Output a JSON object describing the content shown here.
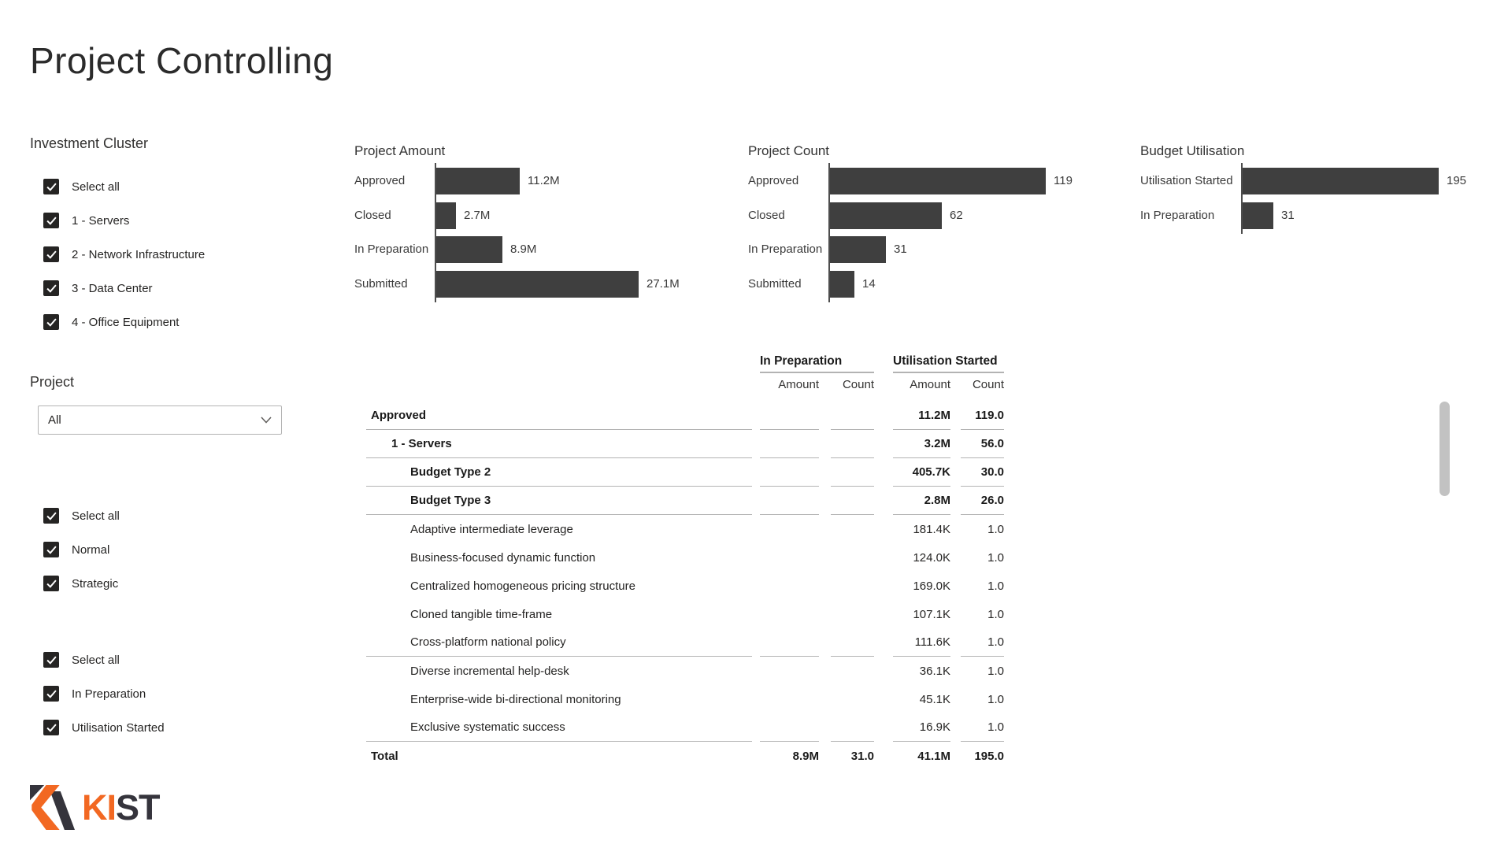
{
  "page": {
    "title": "Project Controlling"
  },
  "filters": {
    "investment_cluster": {
      "label": "Investment Cluster",
      "items": [
        "Select all",
        "1 - Servers",
        "2 - Network Infrastructure",
        "3 - Data Center",
        "4 - Office Equipment"
      ],
      "checked": [
        true,
        true,
        true,
        true,
        true
      ]
    },
    "project": {
      "label": "Project",
      "dropdown_value": "All"
    },
    "priority": {
      "items": [
        "Select all",
        "Normal",
        "Strategic"
      ],
      "checked": [
        true,
        true,
        true
      ]
    },
    "status": {
      "items": [
        "Select all",
        "In Preparation",
        "Utilisation Started"
      ],
      "checked": [
        true,
        true,
        true
      ]
    }
  },
  "chart_data": [
    {
      "type": "bar",
      "orientation": "horizontal",
      "title": "Project Amount",
      "categories": [
        "Approved",
        "Closed",
        "In Preparation",
        "Submitted"
      ],
      "values": [
        11.2,
        2.7,
        8.9,
        27.1
      ],
      "value_labels": [
        "11.2M",
        "2.7M",
        "8.9M",
        "27.1M"
      ],
      "xlim": [
        0,
        27.1
      ],
      "bar_color": "#3F3F3F",
      "grid": false,
      "legend": false
    },
    {
      "type": "bar",
      "orientation": "horizontal",
      "title": "Project Count",
      "categories": [
        "Approved",
        "Closed",
        "In Preparation",
        "Submitted"
      ],
      "values": [
        119,
        62,
        31,
        14
      ],
      "value_labels": [
        "119",
        "62",
        "31",
        "14"
      ],
      "xlim": [
        0,
        119
      ],
      "bar_color": "#3F3F3F",
      "grid": false,
      "legend": false
    },
    {
      "type": "bar",
      "orientation": "horizontal",
      "title": "Budget Utilisation",
      "categories": [
        "Utilisation Started",
        "In Preparation"
      ],
      "values": [
        195,
        31
      ],
      "value_labels": [
        "195",
        "31"
      ],
      "xlim": [
        0,
        195
      ],
      "bar_color": "#3F3F3F",
      "grid": false,
      "legend": false
    }
  ],
  "matrix": {
    "column_groups": [
      "In Preparation",
      "Utilisation Started"
    ],
    "sub_columns": [
      "Amount",
      "Count",
      "Amount",
      "Count"
    ],
    "rows": [
      {
        "label": "Approved",
        "level": 0,
        "bold": true,
        "sep": true,
        "values": [
          "",
          "",
          "11.2M",
          "119.0"
        ]
      },
      {
        "label": "1 - Servers",
        "level": 1,
        "bold": true,
        "sep": true,
        "values": [
          "",
          "",
          "3.2M",
          "56.0"
        ]
      },
      {
        "label": "Budget Type 2",
        "level": 2,
        "bold": true,
        "sep": true,
        "values": [
          "",
          "",
          "405.7K",
          "30.0"
        ]
      },
      {
        "label": "Budget Type 3",
        "level": 2,
        "bold": true,
        "sep": true,
        "values": [
          "",
          "",
          "2.8M",
          "26.0"
        ]
      },
      {
        "label": "Adaptive intermediate leverage",
        "level": 2,
        "bold": false,
        "sep": false,
        "values": [
          "",
          "",
          "181.4K",
          "1.0"
        ]
      },
      {
        "label": "Business-focused dynamic function",
        "level": 2,
        "bold": false,
        "sep": false,
        "values": [
          "",
          "",
          "124.0K",
          "1.0"
        ]
      },
      {
        "label": "Centralized homogeneous pricing structure",
        "level": 2,
        "bold": false,
        "sep": false,
        "values": [
          "",
          "",
          "169.0K",
          "1.0"
        ]
      },
      {
        "label": "Cloned tangible time-frame",
        "level": 2,
        "bold": false,
        "sep": false,
        "values": [
          "",
          "",
          "107.1K",
          "1.0"
        ]
      },
      {
        "label": "Cross-platform national policy",
        "level": 2,
        "bold": false,
        "sep": true,
        "values": [
          "",
          "",
          "111.6K",
          "1.0"
        ]
      },
      {
        "label": "Diverse incremental help-desk",
        "level": 2,
        "bold": false,
        "sep": false,
        "values": [
          "",
          "",
          "36.1K",
          "1.0"
        ]
      },
      {
        "label": "Enterprise-wide bi-directional monitoring",
        "level": 2,
        "bold": false,
        "sep": false,
        "values": [
          "",
          "",
          "45.1K",
          "1.0"
        ]
      },
      {
        "label": "Exclusive systematic success",
        "level": 2,
        "bold": false,
        "sep": true,
        "values": [
          "",
          "",
          "16.9K",
          "1.0"
        ]
      },
      {
        "label": "Total",
        "level": 0,
        "bold": true,
        "sep": false,
        "values": [
          "8.9M",
          "31.0",
          "41.1M",
          "195.0"
        ]
      }
    ]
  },
  "logo": {
    "text_primary": "KI",
    "text_secondary": "ST",
    "orange": "#F26822",
    "dark": "#35343C"
  },
  "colors": {
    "bar": "#3F3F3F",
    "checkbox": "#252423",
    "gridline": "#b3b3b3",
    "scrollbar": "#c2c2c2"
  }
}
